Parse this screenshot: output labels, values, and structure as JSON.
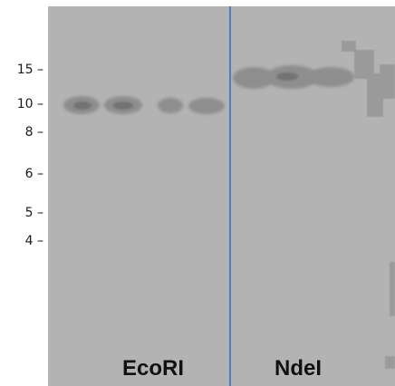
{
  "markers": [
    {
      "label": "15 –"
    },
    {
      "label": "10 –"
    },
    {
      "label": "8 –"
    },
    {
      "label": "6 –"
    },
    {
      "label": "5 –"
    },
    {
      "label": "4 –"
    }
  ],
  "lanes": [
    {
      "label": "EcoRI"
    },
    {
      "label": "NdeI"
    }
  ],
  "colors": {
    "membrane": "#b3b3b3",
    "band": "#8e8e8e",
    "divider": "#4d7fbf"
  }
}
